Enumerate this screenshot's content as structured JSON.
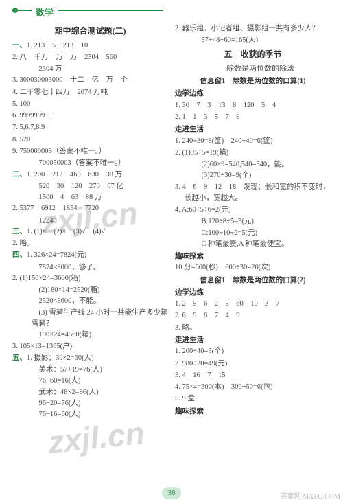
{
  "header": {
    "subject": "数学"
  },
  "left": {
    "title": "期中综合测试题(二)",
    "sec1": {
      "label": "一、",
      "items": [
        "1. 213　5　213　10",
        "2. 八　千万　万　万　2304　560",
        "　2304 万",
        "3. 300030003000　十二　亿　万　个",
        "4. 二千零七十四万　2074 万吨",
        "5. 100",
        "6. 9999999　1",
        "7. 5,6,7,8,9",
        "8. 520",
        "9. 750000003（答案不唯一。）",
        "　700050003（答案不唯一。）"
      ]
    },
    "sec2": {
      "label": "二、",
      "items": [
        "1. 200　212　460　630　38 万",
        "　520　30　120　270　67 亿",
        "　1500　4　63　88 万",
        "2. 5377　6912　1854　7720",
        "　12240"
      ]
    },
    "sec3": {
      "label": "三、",
      "items": [
        "1. (1)×　(2)×　(3)√　(4)√",
        "2. 略。"
      ]
    },
    "sec4": {
      "label": "四、",
      "items": [
        "1. 326×24=7824(元)",
        "　7824<8000，够了。",
        "2. (1)150×24=3600(箱)",
        "　(2)180×14=2520(箱)",
        "　2520<3600，不能。",
        "　(3) 雪碧生产线 24 小时一共能生产多少箱雪碧？",
        "　190×24=4560(箱)",
        "3. 105×13=1365(户)"
      ]
    },
    "sec5": {
      "label": "五、",
      "items": [
        "1. 摄影：30×2=60(人)",
        "　美术：57+19=76(人)",
        "　76−60=16(人)",
        "　武术：48×2=96(人)",
        "　96−20=76(人)",
        "　76−16=60(人)"
      ]
    }
  },
  "right": {
    "top": [
      "2. 器乐组、小记者组、摄影组一共有多少人？",
      "　57+48+60=165(人)"
    ],
    "unit_title": "五　收获的季节",
    "unit_sub": "——除数是两位数的除法",
    "info1_title": "信息窗1　除数是两位数的口算(1)",
    "bxbl1_h": "边学边练",
    "bxbl1": [
      "1. 30　7　3　13　8　120　5　4",
      "2. 1　1　3　5　7　9"
    ],
    "zjsh1_h": "走进生活",
    "zjsh1": [
      "1. 240÷30=8(筐)　240÷40=6(筐)",
      "2. (1)95÷5=19(箱)",
      "　(2)60×9=540,540=540，能。",
      "　(3)270÷30=9(个)",
      "3. 4　6　9　12　18　发现：长和宽的积不变时，长越小，宽越大。",
      "4. A:60÷5÷6=2(元)",
      "　B:120÷8÷5=3(元)",
      "　C:100÷10÷2=5(元)",
      "　C 种笔最贵,A 种笔最便宜。"
    ],
    "qwts1_h": "趣味探索",
    "qwts1": [
      "10 分=600(秒)　600÷30=20(次)"
    ],
    "info2_title": "信息窗1　除数是两位数的口算(2)",
    "bxbl2_h": "边学边练",
    "bxbl2": [
      "1. 2　5　6　2　5　60　10　3　7",
      "2. 6　9　8　7　4　9",
      "3. 略。"
    ],
    "zjsh2_h": "走进生活",
    "zjsh2": [
      "1. 200÷40=5(个)",
      "2. 980÷20=49(元)",
      "3. 4　16　7　15",
      "4. 75×4=300(本)　300÷50=6(包)",
      "5. 9 盘"
    ],
    "qwts2_h": "趣味探索"
  },
  "page": "38",
  "watermark": "zxjl.cn",
  "corner": "答案网\nMXEQ.COM"
}
